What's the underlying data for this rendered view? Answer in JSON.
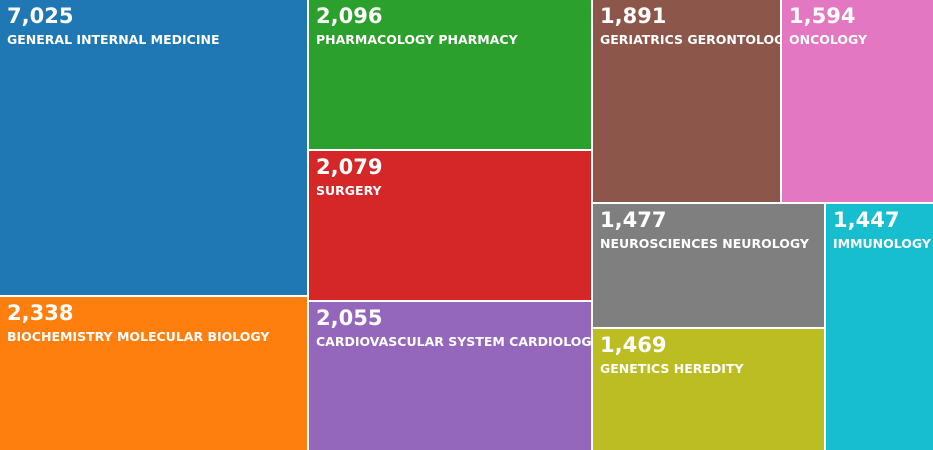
{
  "chart_data": {
    "type": "treemap",
    "items": [
      {
        "label": "GENERAL INTERNAL MEDICINE",
        "value": 7025,
        "value_text": "7,025",
        "color": "#1f77b4"
      },
      {
        "label": "BIOCHEMISTRY MOLECULAR BIOLOGY",
        "value": 2338,
        "value_text": "2,338",
        "color": "#ff7f0e"
      },
      {
        "label": "PHARMACOLOGY PHARMACY",
        "value": 2096,
        "value_text": "2,096",
        "color": "#2ca02c"
      },
      {
        "label": "SURGERY",
        "value": 2079,
        "value_text": "2,079",
        "color": "#d62728"
      },
      {
        "label": "CARDIOVASCULAR SYSTEM CARDIOLOGY",
        "value": 2055,
        "value_text": "2,055",
        "color": "#9467bd"
      },
      {
        "label": "GERIATRICS GERONTOLOGY",
        "value": 1891,
        "value_text": "1,891",
        "color": "#8c564b"
      },
      {
        "label": "ONCOLOGY",
        "value": 1594,
        "value_text": "1,594",
        "color": "#e377c2"
      },
      {
        "label": "NEUROSCIENCES NEUROLOGY",
        "value": 1477,
        "value_text": "1,477",
        "color": "#7f7f7f"
      },
      {
        "label": "GENETICS HEREDITY",
        "value": 1469,
        "value_text": "1,469",
        "color": "#bcbd22"
      },
      {
        "label": "IMMUNOLOGY",
        "value": 1447,
        "value_text": "1,447",
        "color": "#17becf"
      }
    ]
  }
}
